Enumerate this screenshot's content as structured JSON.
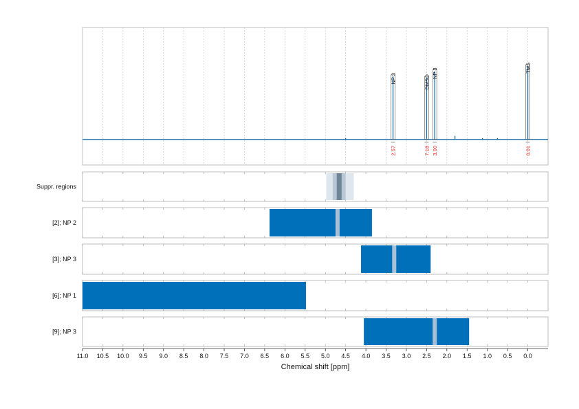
{
  "chart_data": {
    "type": "line",
    "xlabel": "Chemical shift [ppm]",
    "xlim": [
      11.0,
      -0.5
    ],
    "x_ticks": [
      "11.0",
      "10.5",
      "10.0",
      "9.5",
      "9.0",
      "8.5",
      "8.0",
      "7.5",
      "7.0",
      "6.5",
      "6.0",
      "5.5",
      "5.0",
      "4.5",
      "4.0",
      "3.5",
      "3.0",
      "2.5",
      "2.0",
      "1.5",
      "1.0",
      "0.5",
      "0.0"
    ],
    "grid": true,
    "spectrum": {
      "baseline": 0,
      "peaks": [
        {
          "ppm": 3.33,
          "height": 0.86
        },
        {
          "ppm": 2.5,
          "height": 0.84
        },
        {
          "ppm": 2.3,
          "height": 0.93
        },
        {
          "ppm": 0.0,
          "height": 1.0
        },
        {
          "ppm": 4.5,
          "height": 0.02
        },
        {
          "ppm": 1.8,
          "height": 0.05
        },
        {
          "ppm": 1.12,
          "height": 0.02
        },
        {
          "ppm": 0.75,
          "height": 0.02
        }
      ]
    },
    "annotations": [
      {
        "label": "NP 3",
        "ppm": 3.33,
        "integral": "2.57"
      },
      {
        "label": "DMSO",
        "ppm": 2.5,
        "integral": "7.18"
      },
      {
        "label": "NP 3",
        "ppm": 2.3,
        "integral": "3.00"
      },
      {
        "label": "TMS",
        "ppm": 0.0,
        "integral": "0.01"
      }
    ],
    "rows": [
      {
        "label": "Suppr. regions",
        "kind": "suppression",
        "outer": [
          4.98,
          4.3
        ],
        "inner": [
          4.82,
          4.5
        ],
        "core": [
          4.72,
          4.6
        ]
      },
      {
        "label": "[2]; NP 2",
        "kind": "region",
        "range": [
          6.38,
          3.85
        ],
        "marks": [
          4.7
        ]
      },
      {
        "label": "[3]; NP 3",
        "kind": "region",
        "range": [
          4.12,
          2.4
        ],
        "marks": [
          3.3
        ]
      },
      {
        "label": "[6]; NP 1",
        "kind": "region",
        "range": [
          11.0,
          5.48
        ],
        "marks": []
      },
      {
        "label": "[9]; NP 3",
        "kind": "region",
        "range": [
          4.05,
          1.45
        ],
        "marks": [
          2.3
        ]
      }
    ],
    "colors": {
      "spectrum": "#1f6fa8",
      "region": "#0070ba",
      "mark": "#a9bfd6",
      "suppr_outer": "#dfe6ee",
      "suppr_inner": "#b9c8d6",
      "suppr_core": "#6e8596",
      "integral": "#e8211c",
      "grid": "#c8c8c8",
      "frame": "#bdbdbd"
    }
  }
}
